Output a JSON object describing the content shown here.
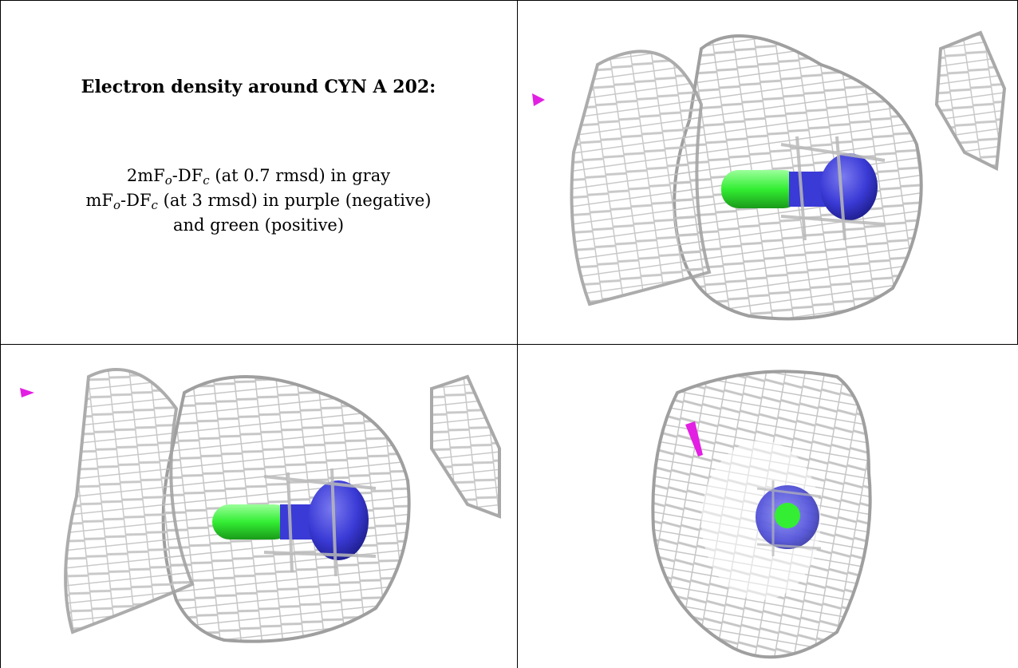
{
  "caption": {
    "title": "Electron density around CYN A 202:",
    "line1": {
      "a": "2mF",
      "a_sub": "o",
      "b": "-DF",
      "b_sub": "c",
      "rest": " (at 0.7 rmsd) in gray"
    },
    "line2": {
      "a": "mF",
      "a_sub": "o",
      "b": "-DF",
      "b_sub": "c",
      "rest": " (at 3 rmsd) in purple (negative)"
    },
    "line3": "and green (positive)"
  },
  "colors": {
    "mesh": "#c8c8c8",
    "mesh_dark": "#7f7f7f",
    "carbon": "#33ee33",
    "nitrogen": "#3a3ad6",
    "negative": "#e21fe2",
    "border": "#000000"
  },
  "panels": [
    {
      "name": "view-side-1"
    },
    {
      "name": "view-side-2"
    },
    {
      "name": "view-end-on"
    }
  ]
}
